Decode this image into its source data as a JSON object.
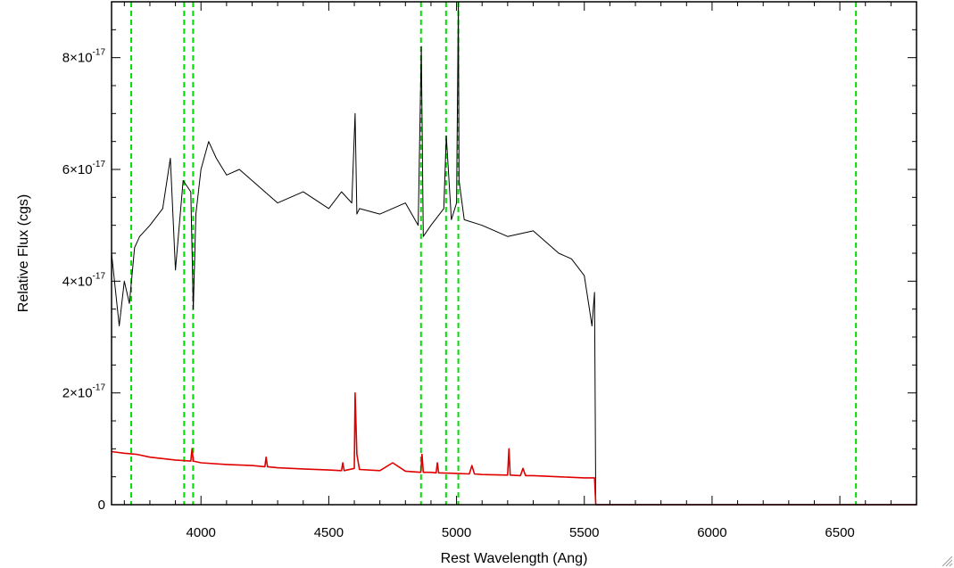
{
  "chart_data": {
    "type": "line",
    "title": "",
    "xlabel": "Rest Wavelength (Ang)",
    "ylabel": "Relative Flux (cgs)",
    "xlim": [
      3650,
      6800
    ],
    "ylim": [
      0,
      9e-17
    ],
    "x_ticks": [
      {
        "value": 4000,
        "label": "4000"
      },
      {
        "value": 4500,
        "label": "4500"
      },
      {
        "value": 5000,
        "label": "5000"
      },
      {
        "value": 5500,
        "label": "5500"
      },
      {
        "value": 6000,
        "label": "6000"
      },
      {
        "value": 6500,
        "label": "6500"
      }
    ],
    "y_ticks": [
      {
        "value": 0,
        "mantissa": "0",
        "exponent": ""
      },
      {
        "value": 2e-17,
        "mantissa": "2×10",
        "exponent": "-17"
      },
      {
        "value": 4e-17,
        "mantissa": "4×10",
        "exponent": "-17"
      },
      {
        "value": 6e-17,
        "mantissa": "6×10",
        "exponent": "-17"
      },
      {
        "value": 8e-17,
        "mantissa": "8×10",
        "exponent": "-17"
      }
    ],
    "grid": false,
    "legend": "none",
    "series": [
      {
        "color": "#000000",
        "style": "solid",
        "x": [
          3650,
          3680,
          3700,
          3720,
          3740,
          3760,
          3800,
          3850,
          3880,
          3900,
          3930,
          3960,
          3970,
          3980,
          4000,
          4030,
          4060,
          4100,
          4150,
          4200,
          4300,
          4400,
          4500,
          4550,
          4590,
          4603,
          4610,
          4620,
          4700,
          4800,
          4850,
          4862,
          4870,
          4900,
          4950,
          4960,
          4980,
          5000,
          5007,
          5010,
          5030,
          5100,
          5200,
          5300,
          5400,
          5450,
          5500,
          5520,
          5530,
          5540,
          5545,
          5600,
          6000,
          6500,
          6800
        ],
        "y": [
          4.5e-17,
          3.2e-17,
          4e-17,
          3.6e-17,
          4.6e-17,
          4.8e-17,
          5e-17,
          5.3e-17,
          6.2e-17,
          4.2e-17,
          5.8e-17,
          5.6e-17,
          3.5e-17,
          5.2e-17,
          6e-17,
          6.5e-17,
          6.2e-17,
          5.9e-17,
          6e-17,
          5.8e-17,
          5.4e-17,
          5.6e-17,
          5.3e-17,
          5.6e-17,
          5.4e-17,
          7e-17,
          5.2e-17,
          5.3e-17,
          5.2e-17,
          5.4e-17,
          5e-17,
          8.2e-17,
          4.8e-17,
          5e-17,
          5.3e-17,
          6.6e-17,
          5.1e-17,
          5.4e-17,
          9e-17,
          5.8e-17,
          5.1e-17,
          5e-17,
          4.8e-17,
          4.9e-17,
          4.5e-17,
          4.4e-17,
          4.1e-17,
          3.5e-17,
          3.2e-17,
          3.8e-17,
          0,
          0,
          0,
          0,
          0
        ]
      },
      {
        "color": "#e00000",
        "style": "solid",
        "x": [
          3650,
          3700,
          3750,
          3800,
          3900,
          3960,
          3965,
          3970,
          4000,
          4100,
          4200,
          4250,
          4255,
          4260,
          4300,
          4400,
          4500,
          4550,
          4555,
          4560,
          4600,
          4603,
          4610,
          4620,
          4700,
          4750,
          4800,
          4860,
          4865,
          4870,
          4900,
          4920,
          4925,
          4930,
          5000,
          5050,
          5060,
          5070,
          5100,
          5200,
          5205,
          5210,
          5250,
          5260,
          5270,
          5300,
          5400,
          5500,
          5540,
          5545,
          5600,
          6000,
          6500,
          6800
        ],
        "y": [
          9.5e-18,
          9.2e-18,
          9e-18,
          8.5e-18,
          8e-18,
          7.8e-18,
          1e-17,
          7.8e-18,
          7.5e-18,
          7.2e-18,
          7e-18,
          6.8e-18,
          8.5e-18,
          6.8e-18,
          6.6e-18,
          6.4e-18,
          6.2e-18,
          6.1e-18,
          7.5e-18,
          6.1e-18,
          6.5e-18,
          2e-17,
          9e-18,
          6.3e-18,
          6.1e-18,
          7.5e-18,
          6e-18,
          5.8e-18,
          9e-18,
          5.8e-18,
          5.8e-18,
          5.7e-18,
          7.5e-18,
          5.7e-18,
          5.6e-18,
          5.5e-18,
          7e-18,
          5.5e-18,
          5.4e-18,
          5.3e-18,
          1e-17,
          5.3e-18,
          5.2e-18,
          6.5e-18,
          5.2e-18,
          5.2e-18,
          5e-18,
          4.8e-18,
          4.8e-18,
          0,
          0,
          0,
          0,
          0
        ]
      }
    ],
    "vertical_lines": {
      "color": "#00e000",
      "style": "dashed",
      "x": [
        3727,
        3934,
        3969,
        4861,
        4959,
        5007,
        6563
      ]
    }
  }
}
